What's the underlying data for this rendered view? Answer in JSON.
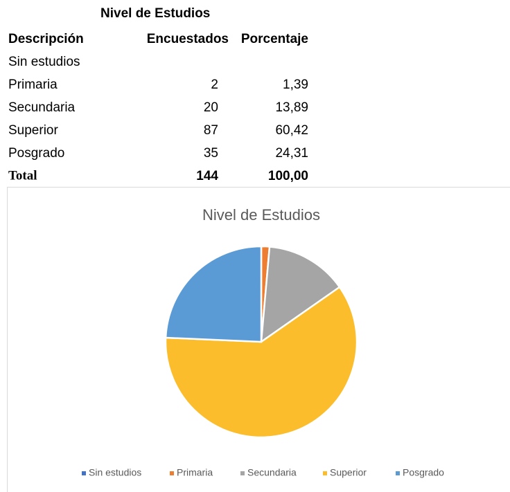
{
  "table": {
    "title": "Nivel de Estudios",
    "headers": [
      "Descripción",
      "Encuestados",
      "Porcentaje"
    ],
    "rows": [
      [
        "Sin estudios"
      ],
      [
        "Primaria",
        "2",
        "1,39"
      ],
      [
        "Secundaria",
        "20",
        "13,89"
      ],
      [
        "Superior",
        "87",
        "60,42"
      ],
      [
        "Posgrado",
        "35",
        "24,31"
      ]
    ],
    "total": [
      "Total",
      "144",
      "100,00"
    ]
  },
  "chart_data": {
    "type": "pie",
    "title": "Nivel de Estudios",
    "categories": [
      "Sin estudios",
      "Primaria",
      "Secundaria",
      "Superior",
      "Posgrado"
    ],
    "values": [
      0,
      1.39,
      13.89,
      60.42,
      24.31
    ],
    "colors": [
      "#4472c4",
      "#ed7d31",
      "#a5a5a5",
      "#fbbd2b",
      "#5b9bd5"
    ],
    "legend": "bottom"
  }
}
